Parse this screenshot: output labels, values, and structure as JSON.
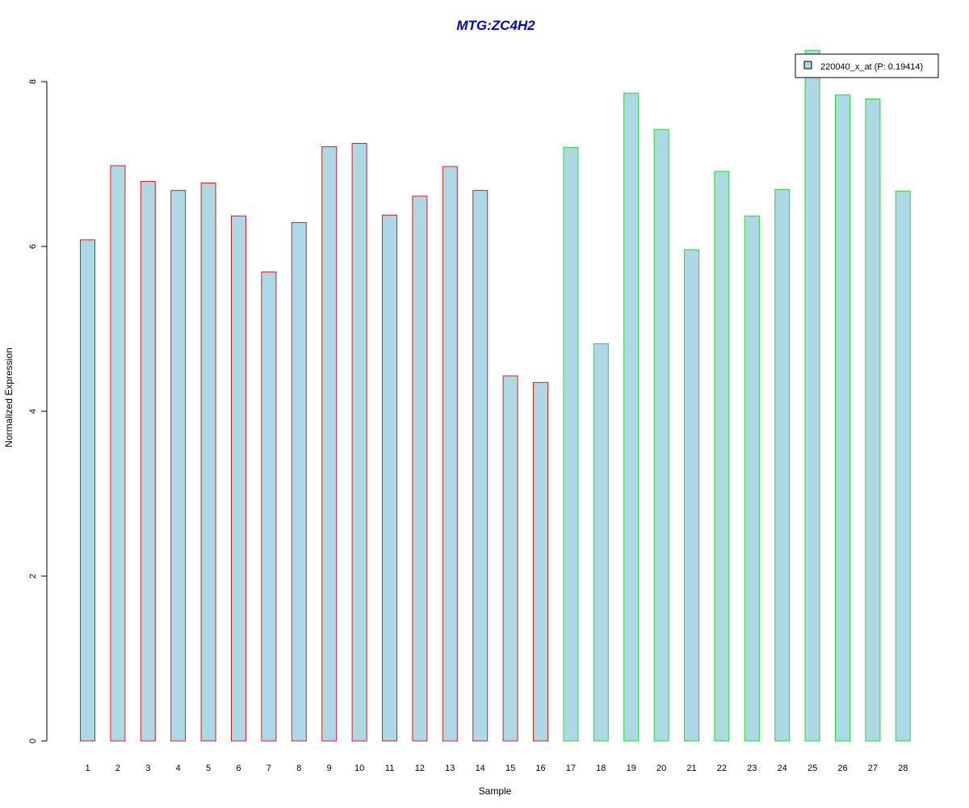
{
  "chart_data": {
    "type": "bar",
    "title": "MTG:ZC4H2",
    "xlabel": "Sample",
    "ylabel": "Normalized Expression",
    "categories": [
      "1",
      "2",
      "3",
      "4",
      "5",
      "6",
      "7",
      "8",
      "9",
      "10",
      "11",
      "12",
      "13",
      "14",
      "15",
      "16",
      "17",
      "18",
      "19",
      "20",
      "21",
      "22",
      "23",
      "24",
      "25",
      "26",
      "27",
      "28"
    ],
    "values": [
      6.08,
      6.98,
      6.79,
      6.68,
      6.77,
      6.37,
      5.69,
      6.29,
      7.21,
      7.25,
      6.38,
      6.61,
      6.97,
      6.68,
      4.43,
      4.35,
      7.2,
      4.82,
      7.86,
      7.42,
      5.96,
      6.91,
      6.37,
      6.69,
      8.38,
      7.84,
      7.79,
      6.67
    ],
    "group_border_colors": [
      "#e31a1c",
      "#e31a1c",
      "#e31a1c",
      "#e31a1c",
      "#e31a1c",
      "#e31a1c",
      "#e31a1c",
      "#e31a1c",
      "#e31a1c",
      "#e31a1c",
      "#e31a1c",
      "#e31a1c",
      "#e31a1c",
      "#e31a1c",
      "#e31a1c",
      "#e31a1c",
      "#22dd22",
      "#22dd22",
      "#22dd22",
      "#22dd22",
      "#22dd22",
      "#22dd22",
      "#22dd22",
      "#22dd22",
      "#22dd22",
      "#22dd22",
      "#22dd22",
      "#22dd22"
    ],
    "bar_fill": "#add8e6",
    "title_color": "#0000cc",
    "yticks": [
      0,
      2,
      4,
      6,
      8
    ],
    "ylim": [
      0,
      8.4
    ],
    "legend": {
      "label": "220040_x_at (P: 0.19414)",
      "position": "top-right",
      "swatch_fill": "#add8e6"
    },
    "grid": false
  }
}
